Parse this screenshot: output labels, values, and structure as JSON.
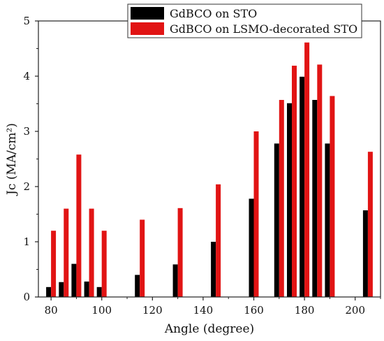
{
  "chart_data": {
    "type": "bar",
    "title": "",
    "xlabel": "Angle (degree)",
    "ylabel": "Jc (MA/cm²)",
    "xlim": [
      75,
      210
    ],
    "ylim": [
      0,
      5
    ],
    "x_ticks": [
      80,
      100,
      120,
      140,
      160,
      180,
      200
    ],
    "y_ticks": [
      0,
      1,
      2,
      3,
      4,
      5
    ],
    "legend_position": "top-right",
    "series": [
      {
        "name": "GdBCO on STO",
        "color": "#000000",
        "points": [
          {
            "x": 80,
            "y": 0.18
          },
          {
            "x": 85,
            "y": 0.27
          },
          {
            "x": 90,
            "y": 0.6
          },
          {
            "x": 95,
            "y": 0.28
          },
          {
            "x": 100,
            "y": 0.18
          },
          {
            "x": 115,
            "y": 0.4
          },
          {
            "x": 130,
            "y": 0.59
          },
          {
            "x": 145,
            "y": 1.0
          },
          {
            "x": 160,
            "y": 1.78
          },
          {
            "x": 170,
            "y": 2.78
          },
          {
            "x": 175,
            "y": 3.51
          },
          {
            "x": 180,
            "y": 3.99
          },
          {
            "x": 185,
            "y": 3.57
          },
          {
            "x": 190,
            "y": 2.78
          },
          {
            "x": 205,
            "y": 1.57
          }
        ]
      },
      {
        "name": "GdBCO on LSMO-decorated STO",
        "color": "#e11414",
        "points": [
          {
            "x": 80,
            "y": 1.2
          },
          {
            "x": 85,
            "y": 1.6
          },
          {
            "x": 90,
            "y": 2.58
          },
          {
            "x": 95,
            "y": 1.6
          },
          {
            "x": 100,
            "y": 1.2
          },
          {
            "x": 115,
            "y": 1.4
          },
          {
            "x": 130,
            "y": 1.61
          },
          {
            "x": 145,
            "y": 2.04
          },
          {
            "x": 160,
            "y": 3.0
          },
          {
            "x": 170,
            "y": 3.57
          },
          {
            "x": 175,
            "y": 4.19
          },
          {
            "x": 180,
            "y": 4.61
          },
          {
            "x": 185,
            "y": 4.21
          },
          {
            "x": 190,
            "y": 3.64
          },
          {
            "x": 205,
            "y": 2.63
          }
        ]
      }
    ]
  }
}
